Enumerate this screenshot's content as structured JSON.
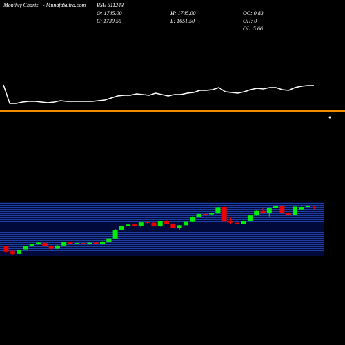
{
  "header": {
    "site": "Monthly Charts",
    "brand": "- MunafaSutra.com",
    "symbol": "BSE 511243",
    "stats": [
      [
        "O: 1745.00",
        "H: 1745.00",
        "OC: 0.83"
      ],
      [
        "C: 1730.55",
        "L: 1651.50",
        "OH: 0"
      ],
      [
        "",
        "",
        "OL: 5.66"
      ]
    ]
  },
  "chart_data": [
    {
      "type": "line",
      "color": "#ffffff",
      "ylim": [
        0,
        60
      ],
      "values": [
        37,
        10,
        10,
        12,
        13,
        13,
        12,
        11,
        12,
        14,
        13,
        13,
        13,
        13,
        13,
        14,
        15,
        18,
        21,
        22,
        22,
        24,
        23,
        22,
        25,
        23,
        21,
        23,
        23,
        25,
        26,
        29,
        29,
        30,
        33,
        27,
        26,
        25,
        27,
        30,
        32,
        31,
        33,
        33,
        30,
        29,
        33,
        35,
        36,
        36
      ]
    },
    {
      "type": "candlestick",
      "up_color": "#00ee00",
      "down_color": "#ee0000",
      "ylim": [
        190,
        1900
      ],
      "open": [
        630,
        490,
        420,
        540,
        630,
        690,
        720,
        640,
        560,
        650,
        750,
        700,
        720,
        690,
        730,
        700,
        760,
        840,
        1080,
        1190,
        1230,
        1180,
        1290,
        1280,
        1180,
        1320,
        1250,
        1130,
        1210,
        1300,
        1440,
        1520,
        1510,
        1550,
        1710,
        1310,
        1280,
        1240,
        1330,
        1480,
        1600,
        1550,
        1680,
        1730,
        1540,
        1500,
        1640,
        1710,
        1745
      ],
      "high": [
        650,
        510,
        540,
        640,
        700,
        740,
        730,
        660,
        660,
        760,
        760,
        730,
        730,
        740,
        740,
        770,
        850,
        1100,
        1200,
        1240,
        1250,
        1300,
        1320,
        1300,
        1330,
        1340,
        1260,
        1220,
        1320,
        1450,
        1530,
        1540,
        1560,
        1710,
        1720,
        1420,
        1360,
        1340,
        1500,
        1610,
        1700,
        1700,
        1740,
        1740,
        1560,
        1740,
        1720,
        1760,
        1745
      ],
      "low": [
        460,
        400,
        410,
        530,
        620,
        680,
        620,
        540,
        550,
        640,
        690,
        690,
        680,
        680,
        690,
        690,
        750,
        830,
        1060,
        1180,
        1170,
        1120,
        1260,
        1170,
        1170,
        1240,
        1120,
        1080,
        1200,
        1290,
        1430,
        1500,
        1500,
        1530,
        1300,
        1250,
        1220,
        1230,
        1320,
        1470,
        1530,
        1450,
        1670,
        1530,
        1480,
        1490,
        1630,
        1700,
        1651.5
      ],
      "close": [
        480,
        420,
        530,
        630,
        690,
        730,
        640,
        560,
        650,
        750,
        700,
        720,
        690,
        730,
        700,
        760,
        840,
        1080,
        1190,
        1230,
        1180,
        1290,
        1280,
        1180,
        1320,
        1250,
        1130,
        1210,
        1300,
        1440,
        1520,
        1510,
        1550,
        1700,
        1310,
        1280,
        1240,
        1330,
        1480,
        1600,
        1550,
        1680,
        1730,
        1540,
        1500,
        1720,
        1710,
        1750,
        1730.55
      ]
    }
  ]
}
